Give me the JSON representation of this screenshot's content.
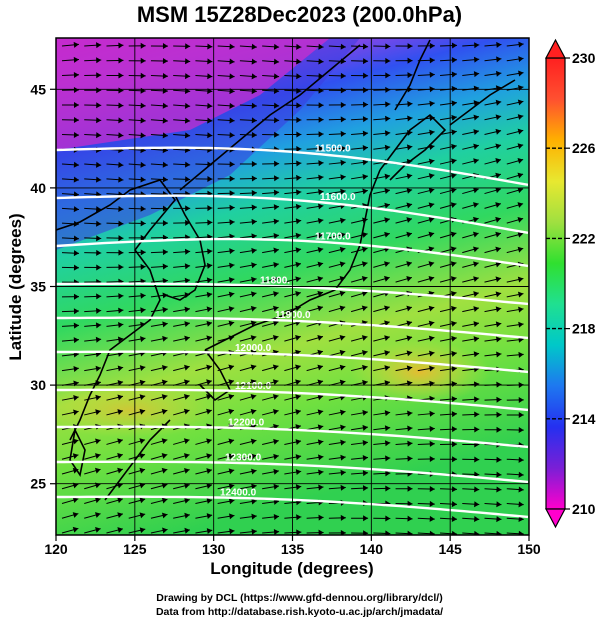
{
  "title": "MSM 15Z28Dec2023 (200.0hPa)",
  "credits": {
    "line1": "Drawing by DCL (https://www.gfd-dennou.org/library/dcl/)",
    "line2": "Data from http://database.rish.kyoto-u.ac.jp/arch/jmadata/"
  },
  "axes": {
    "xlabel": "Longitude (degrees)",
    "ylabel": "Latitude  (degrees)",
    "xlim": [
      120,
      150
    ],
    "ylim": [
      22.4,
      47.6
    ],
    "xticks": [
      120,
      125,
      130,
      135,
      140,
      145,
      150
    ],
    "yticks": [
      25,
      30,
      35,
      40,
      45
    ],
    "grid": true
  },
  "colorbar": {
    "min": 210,
    "max": 230,
    "tick_labels": [
      "230",
      "226",
      "222",
      "218",
      "214",
      "210"
    ],
    "colors": [
      "#ff00cc",
      "#7a1fd6",
      "#2530f0",
      "#1e78f0",
      "#00c8c8",
      "#20e090",
      "#30e030",
      "#a0e040",
      "#e8e830",
      "#ffb000",
      "#ff5030",
      "#ff2020"
    ]
  },
  "contours": {
    "color": "#ffffff",
    "labels": [
      "11500.0",
      "11600.0",
      "11700.0",
      "11800.",
      "11900.0",
      "12000.0",
      "12100.0",
      "12200.0",
      "12300.0",
      "12400.0"
    ]
  },
  "wind": {
    "arrow_color": "#000000",
    "direction": "westerly"
  },
  "coastline_color": "#000000"
}
